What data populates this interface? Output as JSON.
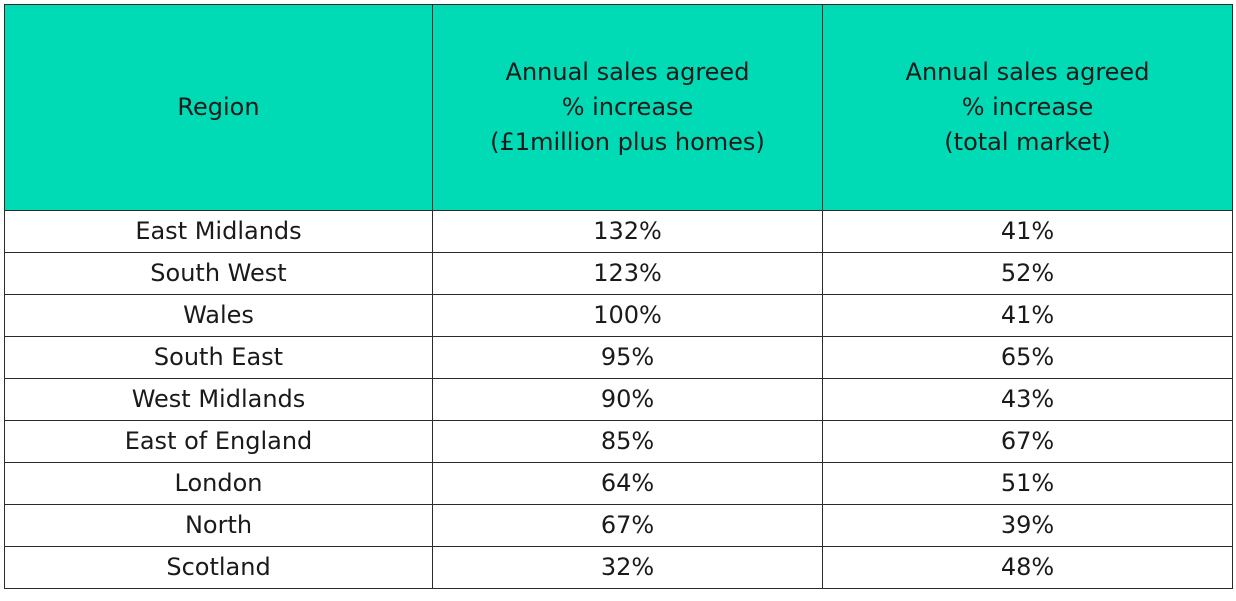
{
  "table": {
    "headers": [
      {
        "key": "region",
        "lines": [
          "Region"
        ]
      },
      {
        "key": "million",
        "lines": [
          "Annual sales agreed",
          "% increase",
          "(£1million plus homes)"
        ]
      },
      {
        "key": "total",
        "lines": [
          "Annual sales agreed",
          "% increase",
          "(total market)"
        ]
      }
    ],
    "rows": [
      {
        "region": "East Midlands",
        "million": "132%",
        "total": "41%"
      },
      {
        "region": "South West",
        "million": "123%",
        "total": "52%"
      },
      {
        "region": "Wales",
        "million": "100%",
        "total": "41%"
      },
      {
        "region": "South East",
        "million": "95%",
        "total": "65%"
      },
      {
        "region": "West Midlands",
        "million": "90%",
        "total": "43%"
      },
      {
        "region": "East of England",
        "million": "85%",
        "total": "67%"
      },
      {
        "region": "London",
        "million": "64%",
        "total": "51%"
      },
      {
        "region": "North",
        "million": "67%",
        "total": "39%"
      },
      {
        "region": "Scotland",
        "million": "32%",
        "total": "48%"
      }
    ]
  },
  "colors": {
    "header_background": "#00dbb5",
    "border": "#2b2b2b",
    "text": "#1a1a1a"
  }
}
